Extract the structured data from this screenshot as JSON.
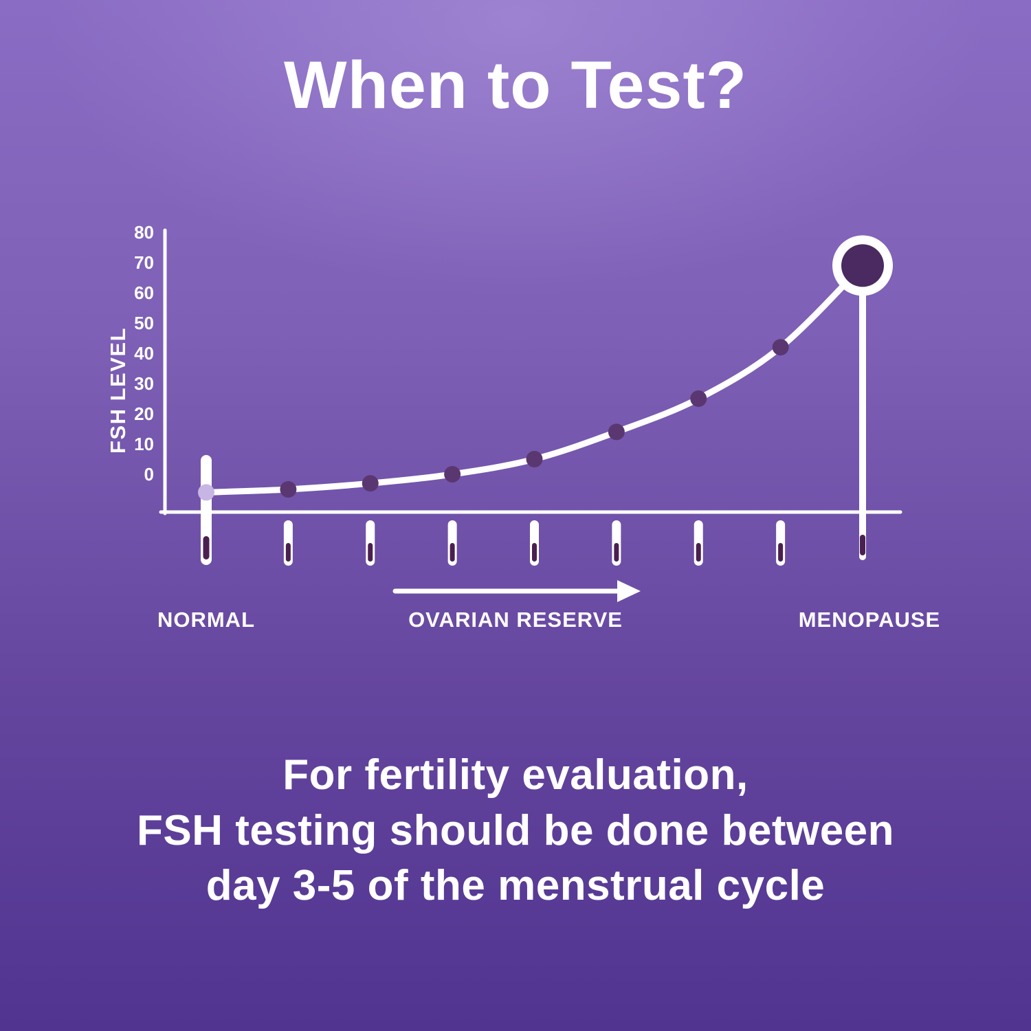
{
  "title": "When to Test?",
  "chart_data": {
    "type": "line",
    "title": "When to Test?",
    "ylabel": "FSH LEVEL",
    "xlabel": "",
    "yticks": [
      0,
      10,
      20,
      30,
      40,
      50,
      60,
      70,
      80
    ],
    "ylim": [
      -10,
      80
    ],
    "x_axis_labels": [
      "NORMAL",
      "OVARIAN RESERVE",
      "MENOPAUSE"
    ],
    "arrow_annotation": "OVARIAN RESERVE",
    "num_test_strips": 9,
    "series": [
      {
        "name": "FSH Level",
        "values": [
          -6,
          -5,
          -3,
          0,
          5,
          14,
          25,
          42,
          69
        ]
      }
    ],
    "grid": false,
    "legend": "none"
  },
  "footer": {
    "lines": [
      "For fertility evaluation,",
      "FSH testing should be done between",
      "day 3-5 of the menstrual cycle"
    ]
  },
  "colors": {
    "background_top": "#8a6cc4",
    "background_bottom": "#503490",
    "line": "#ffffff",
    "text": "#ffffff",
    "dot_dark": "#5a3770",
    "dot_first": "#c7b6e4",
    "end_circle_inner": "#4a2a60",
    "strip_tip": "#4a2050"
  }
}
